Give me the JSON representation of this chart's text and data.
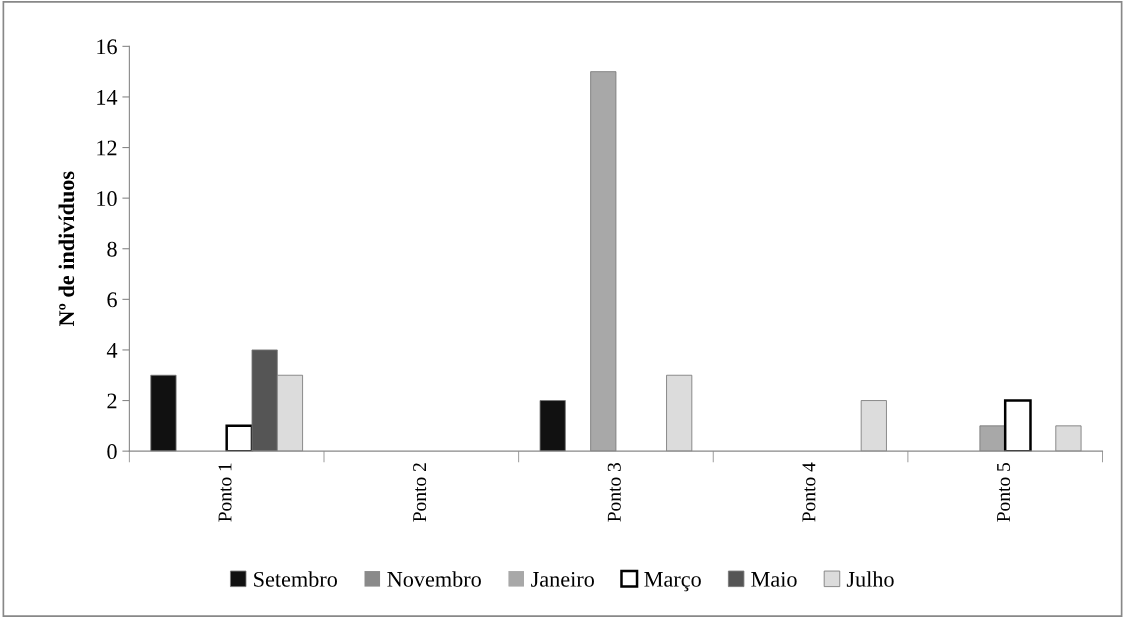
{
  "chart_data": {
    "type": "bar",
    "ylabel": "Nº de indivíduos",
    "categories": [
      "Ponto 1",
      "Ponto 2",
      "Ponto 3",
      "Ponto 4",
      "Ponto 5"
    ],
    "series": [
      {
        "name": "Setembro",
        "color": "#111111",
        "values": [
          3,
          0,
          2,
          0,
          0
        ]
      },
      {
        "name": "Novembro",
        "color": "#8a8a8a",
        "values": [
          0,
          0,
          0,
          0,
          0
        ]
      },
      {
        "name": "Janeiro",
        "color": "#a8a8a8",
        "values": [
          0,
          0,
          15,
          0,
          1
        ]
      },
      {
        "name": "Março",
        "color": "#ffffff",
        "values": [
          1,
          0,
          0,
          0,
          2
        ]
      },
      {
        "name": "Maio",
        "color": "#555555",
        "values": [
          4,
          0,
          0,
          0,
          0
        ]
      },
      {
        "name": "Julho",
        "color": "#dcdcdc",
        "values": [
          3,
          0,
          3,
          2,
          1
        ]
      }
    ],
    "ylim": [
      0,
      16
    ],
    "yticks": [
      0,
      2,
      4,
      6,
      8,
      10,
      12,
      14,
      16
    ],
    "grid": false,
    "legend": "bottom"
  }
}
